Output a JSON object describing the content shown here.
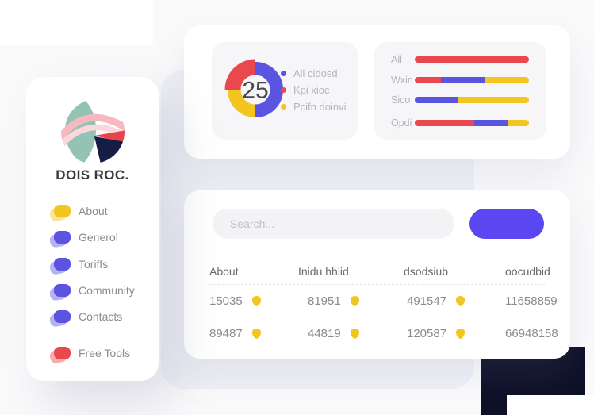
{
  "colors": {
    "red": "#e9494e",
    "blue": "#5b54e0",
    "yellow": "#f2c61e",
    "button_blue": "#5a47f2",
    "navy_shape": "#0e1028",
    "teal_logo": "#93c4b3",
    "pink_logo": "#f7b9c0"
  },
  "sidebar": {
    "brand": "DOIS ROC.",
    "menu": [
      {
        "label": "About",
        "color": "yellow"
      },
      {
        "label": "Generol",
        "color": "blue"
      },
      {
        "label": "Toriffs",
        "color": "blue"
      },
      {
        "label": "Community",
        "color": "blue"
      },
      {
        "label": "Contacts",
        "color": "blue"
      }
    ],
    "footer_item": {
      "label": "Free Tools",
      "color": "red"
    }
  },
  "donut_panel": {
    "center_value": "25",
    "legend": [
      {
        "label": "All cidosd",
        "color": "blue"
      },
      {
        "label": "Kpi xioc",
        "color": "red"
      },
      {
        "label": "Pcifn doinvi",
        "color": "yellow"
      }
    ],
    "chart_data": {
      "type": "pie",
      "title": "",
      "center_value": 25,
      "segments": [
        {
          "name": "All cidosd",
          "color": "blue",
          "value": 50
        },
        {
          "name": "Pcifn doinvi",
          "color": "yellow",
          "value": 25
        },
        {
          "name": "Kpi xioc",
          "color": "red",
          "value": 25
        }
      ]
    }
  },
  "bars_panel": {
    "chart_data": {
      "type": "bar",
      "orientation": "horizontal",
      "stacked": true,
      "categories": [
        "All",
        "Wxin",
        "Sico",
        "Opdi"
      ],
      "rows": [
        {
          "label": "All",
          "segments": [
            {
              "color": "red",
              "pct": 100
            }
          ]
        },
        {
          "label": "Wxin",
          "segments": [
            {
              "color": "red",
              "pct": 23
            },
            {
              "color": "blue",
              "pct": 38
            },
            {
              "color": "yellow",
              "pct": 39
            }
          ]
        },
        {
          "label": "Sico",
          "segments": [
            {
              "color": "blue",
              "pct": 38
            },
            {
              "color": "yellow",
              "pct": 62
            }
          ]
        },
        {
          "label": "Opdi",
          "segments": [
            {
              "color": "red",
              "pct": 52
            },
            {
              "color": "blue",
              "pct": 30
            },
            {
              "color": "yellow",
              "pct": 18
            }
          ]
        }
      ]
    }
  },
  "table_card": {
    "search_placeholder": "Search...",
    "columns": [
      "About",
      "Inidu hhlid",
      "dsodsiub",
      "oocudbid"
    ],
    "rows": [
      [
        {
          "value": "15035",
          "icon": "shield-icon"
        },
        {
          "value": "81951",
          "icon": "shield-icon"
        },
        {
          "value": "491547",
          "icon": "shield-icon"
        },
        {
          "value": "11658859",
          "icon": null
        }
      ],
      [
        {
          "value": "89487",
          "icon": "shield-icon"
        },
        {
          "value": "44819",
          "icon": "shield-icon"
        },
        {
          "value": "120587",
          "icon": "shield-icon"
        },
        {
          "value": "66948158",
          "icon": null
        }
      ]
    ]
  }
}
